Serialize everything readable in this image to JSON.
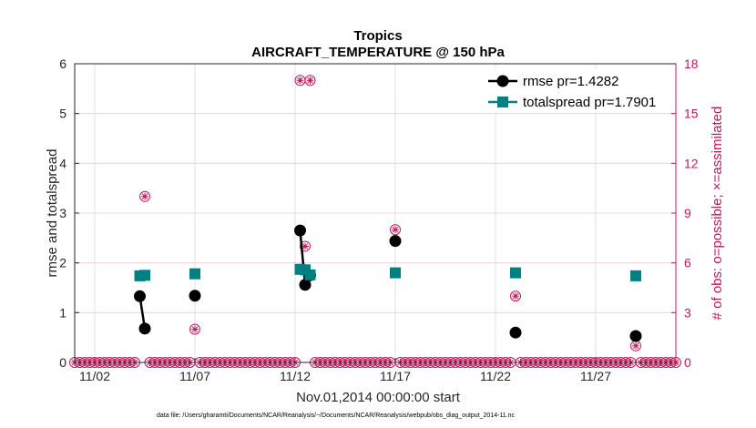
{
  "chart_data": {
    "type": "line",
    "title": "Tropics",
    "subtitle": "AIRCRAFT_TEMPERATURE @ 150 hPa",
    "xlabel": "Nov.01,2014 00:00:00 start",
    "ylabel": "rmse and totalspread",
    "y2label": "# of obs: o=possible; ×=assimilated",
    "footnote": "data file: /Users/gharamti/Documents/NCAR/Reanalysis/~/Documents/NCAR/Reanalysis/webpub/obs_diag_output_2014-11.nc",
    "x_ticks": [
      {
        "day": 2,
        "label": "11/02"
      },
      {
        "day": 7,
        "label": "11/07"
      },
      {
        "day": 12,
        "label": "11/12"
      },
      {
        "day": 17,
        "label": "11/17"
      },
      {
        "day": 22,
        "label": "11/22"
      },
      {
        "day": 27,
        "label": "11/27"
      }
    ],
    "xlim": [
      1,
      31
    ],
    "ylim": [
      0,
      6
    ],
    "y_ticks": [
      "0",
      "1",
      "2",
      "3",
      "4",
      "5",
      "6"
    ],
    "y2lim": [
      0,
      18
    ],
    "y2_ticks": [
      "0",
      "3",
      "6",
      "9",
      "12",
      "15",
      "18"
    ],
    "grid": true,
    "legend_position": "top-right",
    "series": [
      {
        "name": "rmse pr=1.4282",
        "color": "#000000",
        "marker": "circle",
        "points": [
          [
            4.25,
            1.33
          ],
          [
            4.5,
            0.68
          ],
          [
            7.0,
            1.34
          ],
          [
            12.25,
            2.65
          ],
          [
            12.5,
            1.56
          ],
          [
            12.75,
            1.75
          ],
          [
            17.0,
            2.44
          ],
          [
            23.0,
            0.6
          ],
          [
            29.0,
            0.53
          ]
        ]
      },
      {
        "name": "totalspread pr=1.7901",
        "color": "#008080",
        "marker": "square",
        "points": [
          [
            4.25,
            1.74
          ],
          [
            4.5,
            1.75
          ],
          [
            7.0,
            1.78
          ],
          [
            12.25,
            1.87
          ],
          [
            12.5,
            1.86
          ],
          [
            12.75,
            1.76
          ],
          [
            17.0,
            1.8
          ],
          [
            23.0,
            1.8
          ],
          [
            29.0,
            1.74
          ]
        ]
      }
    ],
    "obs_series": {
      "color": "#c2185b",
      "axis": "right",
      "start_day": 1,
      "step_days": 0.25,
      "end_day": 31,
      "nonzero": [
        [
          4.25,
          4
        ],
        [
          4.5,
          10
        ],
        [
          7.0,
          2
        ],
        [
          12.25,
          17
        ],
        [
          12.5,
          7
        ],
        [
          12.75,
          17
        ],
        [
          17.0,
          8
        ],
        [
          23.0,
          4
        ],
        [
          29.0,
          1
        ]
      ]
    }
  }
}
